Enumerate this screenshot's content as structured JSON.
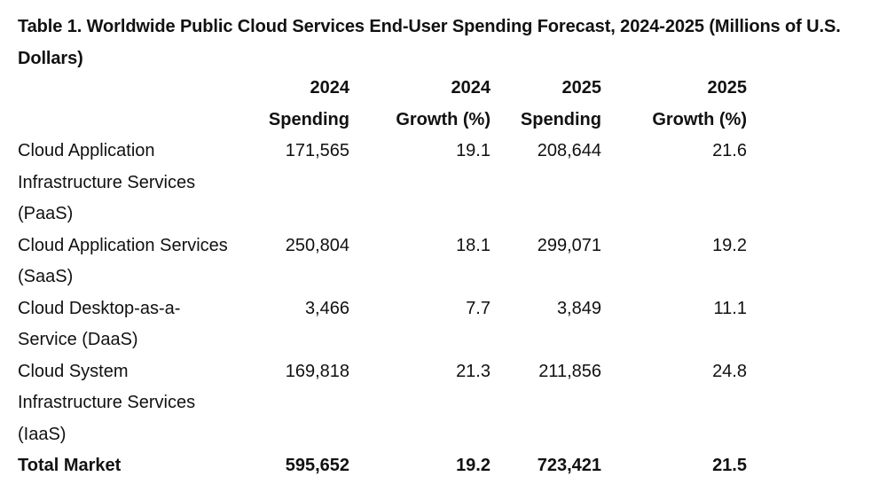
{
  "title": "Table 1. Worldwide Public Cloud Services End-User Spending Forecast, 2024-2025 (Millions of U.S. Dollars)",
  "table": {
    "headers": [
      {
        "line1": "",
        "line2": ""
      },
      {
        "line1": "2024",
        "line2": "Spending"
      },
      {
        "line1": "2024",
        "line2": "Growth (%)"
      },
      {
        "line1": "2025",
        "line2": "Spending"
      },
      {
        "line1": "2025",
        "line2": "Growth (%)"
      }
    ],
    "rows": [
      {
        "category": "Cloud Application Infrastructure Services (PaaS)",
        "spending_2024": "171,565",
        "growth_2024": "19.1",
        "spending_2025": "208,644",
        "growth_2025": "21.6"
      },
      {
        "category": "Cloud Application Services (SaaS)",
        "spending_2024": "250,804",
        "growth_2024": "18.1",
        "spending_2025": "299,071",
        "growth_2025": "19.2"
      },
      {
        "category": "Cloud Desktop-as-a-Service (DaaS)",
        "spending_2024": "3,466",
        "growth_2024": "7.7",
        "spending_2025": "3,849",
        "growth_2025": "11.1"
      },
      {
        "category": "Cloud System Infrastructure Services (IaaS)",
        "spending_2024": "169,818",
        "growth_2024": "21.3",
        "spending_2025": "211,856",
        "growth_2025": "24.8"
      }
    ],
    "total": {
      "category": "Total Market",
      "spending_2024": "595,652",
      "growth_2024": "19.2",
      "spending_2025": "723,421",
      "growth_2025": "21.5"
    }
  }
}
